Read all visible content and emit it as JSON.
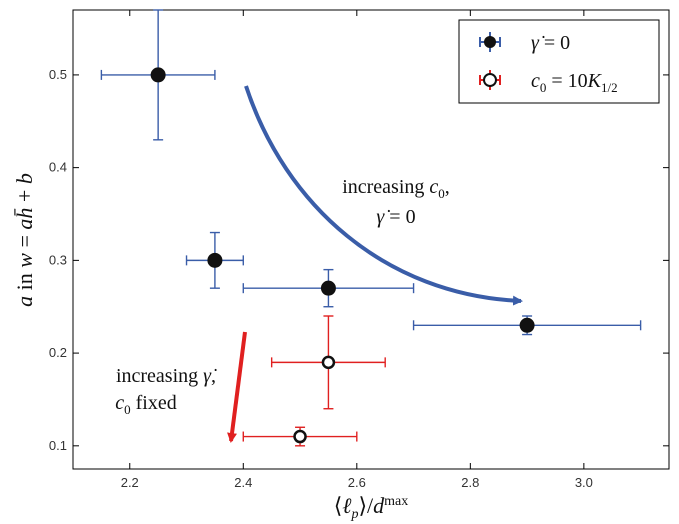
{
  "chart_data": {
    "type": "scatter",
    "xlabel": "⟨ℓp⟩/d^max",
    "ylabel": "a in w = a h̄ + b",
    "xlim": [
      2.1,
      3.15
    ],
    "ylim": [
      0.075,
      0.57
    ],
    "x_ticks": [
      2.2,
      2.4,
      2.6,
      2.8,
      3.0
    ],
    "x_tick_labels": [
      "2.2",
      "2.4",
      "2.6",
      "2.8",
      "3.0"
    ],
    "y_ticks": [
      0.1,
      0.2,
      0.3,
      0.4,
      0.5
    ],
    "y_tick_labels": [
      "0.1",
      "0.2",
      "0.3",
      "0.4",
      "0.5"
    ],
    "grid": false,
    "legend_position": "top-right",
    "series": [
      {
        "name": "γ̇ = 0",
        "color": "#3a5da8",
        "marker": "filled-circle",
        "points": [
          {
            "x": 2.25,
            "y": 0.5,
            "xerr": [
              2.15,
              2.35
            ],
            "yerr": [
              0.43,
              0.57
            ]
          },
          {
            "x": 2.35,
            "y": 0.3,
            "xerr": [
              2.3,
              2.4
            ],
            "yerr": [
              0.27,
              0.33
            ]
          },
          {
            "x": 2.55,
            "y": 0.27,
            "xerr": [
              2.4,
              2.7
            ],
            "yerr": [
              0.25,
              0.29
            ]
          },
          {
            "x": 2.9,
            "y": 0.23,
            "xerr": [
              2.7,
              3.1
            ],
            "yerr": [
              0.22,
              0.24
            ]
          }
        ]
      },
      {
        "name": "c0 = 10K1/2",
        "color": "#e02020",
        "marker": "open-circle",
        "points": [
          {
            "x": 2.55,
            "y": 0.19,
            "xerr": [
              2.45,
              2.65
            ],
            "yerr": [
              0.14,
              0.24
            ]
          },
          {
            "x": 2.5,
            "y": 0.11,
            "xerr": [
              2.4,
              2.6
            ],
            "yerr": [
              0.1,
              0.12
            ]
          }
        ]
      }
    ],
    "annotations": [
      {
        "line1": "increasing c0,",
        "line2": "γ̇ = 0",
        "arrow_color": "#3a5da8"
      },
      {
        "line1": "increasing γ̇,",
        "line2": "c0 fixed",
        "arrow_color": "#e02020"
      }
    ]
  }
}
